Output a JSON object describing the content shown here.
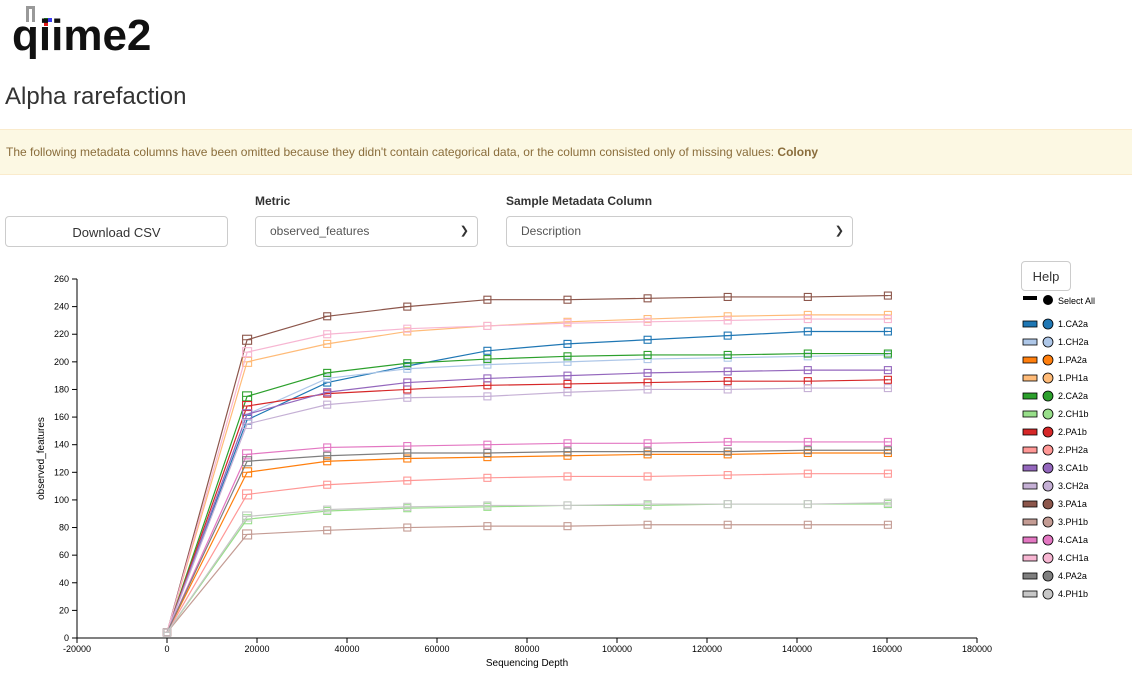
{
  "logo_text": "qiime2",
  "page": {
    "title": "Alpha rarefaction"
  },
  "alert": {
    "text": "The following metadata columns have been omitted because they didn't contain categorical data, or the column consisted only of missing values: ",
    "column": "Colony"
  },
  "controls": {
    "download_label": "Download CSV",
    "metric_label": "Metric",
    "metric_value": "observed_features",
    "metadata_label": "Sample Metadata Column",
    "metadata_value": "Description",
    "help_label": "Help"
  },
  "legend": {
    "select_all": "Select All"
  },
  "chart_data": {
    "type": "line",
    "xlabel": "Sequencing Depth",
    "ylabel": "observed_features",
    "xlim": [
      -20000,
      180000
    ],
    "ylim": [
      0,
      260
    ],
    "xticks": [
      -20000,
      0,
      20000,
      40000,
      60000,
      80000,
      100000,
      120000,
      140000,
      160000,
      180000
    ],
    "yticks": [
      0,
      20,
      40,
      60,
      80,
      100,
      120,
      140,
      160,
      180,
      200,
      220,
      240,
      260
    ],
    "x": [
      1,
      17800,
      35600,
      53400,
      71200,
      89000,
      106800,
      124600,
      142400,
      160200
    ],
    "series": [
      {
        "name": "1.CA2a",
        "color": "#1f77b4",
        "values": [
          4,
          158,
          185,
          197,
          208,
          213,
          216,
          219,
          222,
          222
        ]
      },
      {
        "name": "1.CH2a",
        "color": "#aec7e8",
        "values": [
          4,
          162,
          188,
          195,
          198,
          200,
          202,
          203,
          204,
          205
        ]
      },
      {
        "name": "1.PA2a",
        "color": "#ff7f0e",
        "values": [
          4,
          120,
          128,
          130,
          131,
          132,
          133,
          133,
          134,
          134
        ]
      },
      {
        "name": "1.PH1a",
        "color": "#ffbb78",
        "values": [
          4,
          200,
          213,
          222,
          226,
          229,
          231,
          233,
          234,
          234
        ]
      },
      {
        "name": "2.CA2a",
        "color": "#2ca02c",
        "values": [
          4,
          175,
          192,
          199,
          202,
          204,
          205,
          205,
          206,
          206
        ]
      },
      {
        "name": "2.CH1b",
        "color": "#98df8a",
        "values": [
          4,
          86,
          92,
          94,
          95,
          96,
          96,
          97,
          97,
          97
        ]
      },
      {
        "name": "2.PA1b",
        "color": "#d62728",
        "values": [
          4,
          168,
          177,
          180,
          183,
          184,
          185,
          186,
          186,
          187
        ]
      },
      {
        "name": "2.PH2a",
        "color": "#ff9896",
        "values": [
          4,
          104,
          111,
          114,
          116,
          117,
          117,
          118,
          119,
          119
        ]
      },
      {
        "name": "3.CA1b",
        "color": "#9467bd",
        "values": [
          4,
          162,
          178,
          185,
          188,
          190,
          192,
          193,
          194,
          194
        ]
      },
      {
        "name": "3.CH2a",
        "color": "#c5b0d5",
        "values": [
          4,
          155,
          169,
          174,
          175,
          178,
          180,
          180,
          181,
          181
        ]
      },
      {
        "name": "3.PA1a",
        "color": "#8c564b",
        "values": [
          4,
          216,
          233,
          240,
          245,
          245,
          246,
          247,
          247,
          248
        ]
      },
      {
        "name": "3.PH1b",
        "color": "#c49c94",
        "values": [
          4,
          75,
          78,
          80,
          81,
          81,
          82,
          82,
          82,
          82
        ]
      },
      {
        "name": "4.CA1a",
        "color": "#e377c2",
        "values": [
          4,
          133,
          138,
          139,
          140,
          141,
          141,
          142,
          142,
          142
        ]
      },
      {
        "name": "4.CH1a",
        "color": "#f7b6d2",
        "values": [
          4,
          207,
          220,
          224,
          226,
          228,
          229,
          230,
          231,
          231
        ]
      },
      {
        "name": "4.PA2a",
        "color": "#7f7f7f",
        "values": [
          4,
          128,
          132,
          134,
          134,
          135,
          135,
          135,
          136,
          136
        ]
      },
      {
        "name": "4.PH1b",
        "color": "#c7c7c7",
        "values": [
          4,
          88,
          93,
          95,
          96,
          96,
          97,
          97,
          97,
          98
        ]
      }
    ]
  }
}
